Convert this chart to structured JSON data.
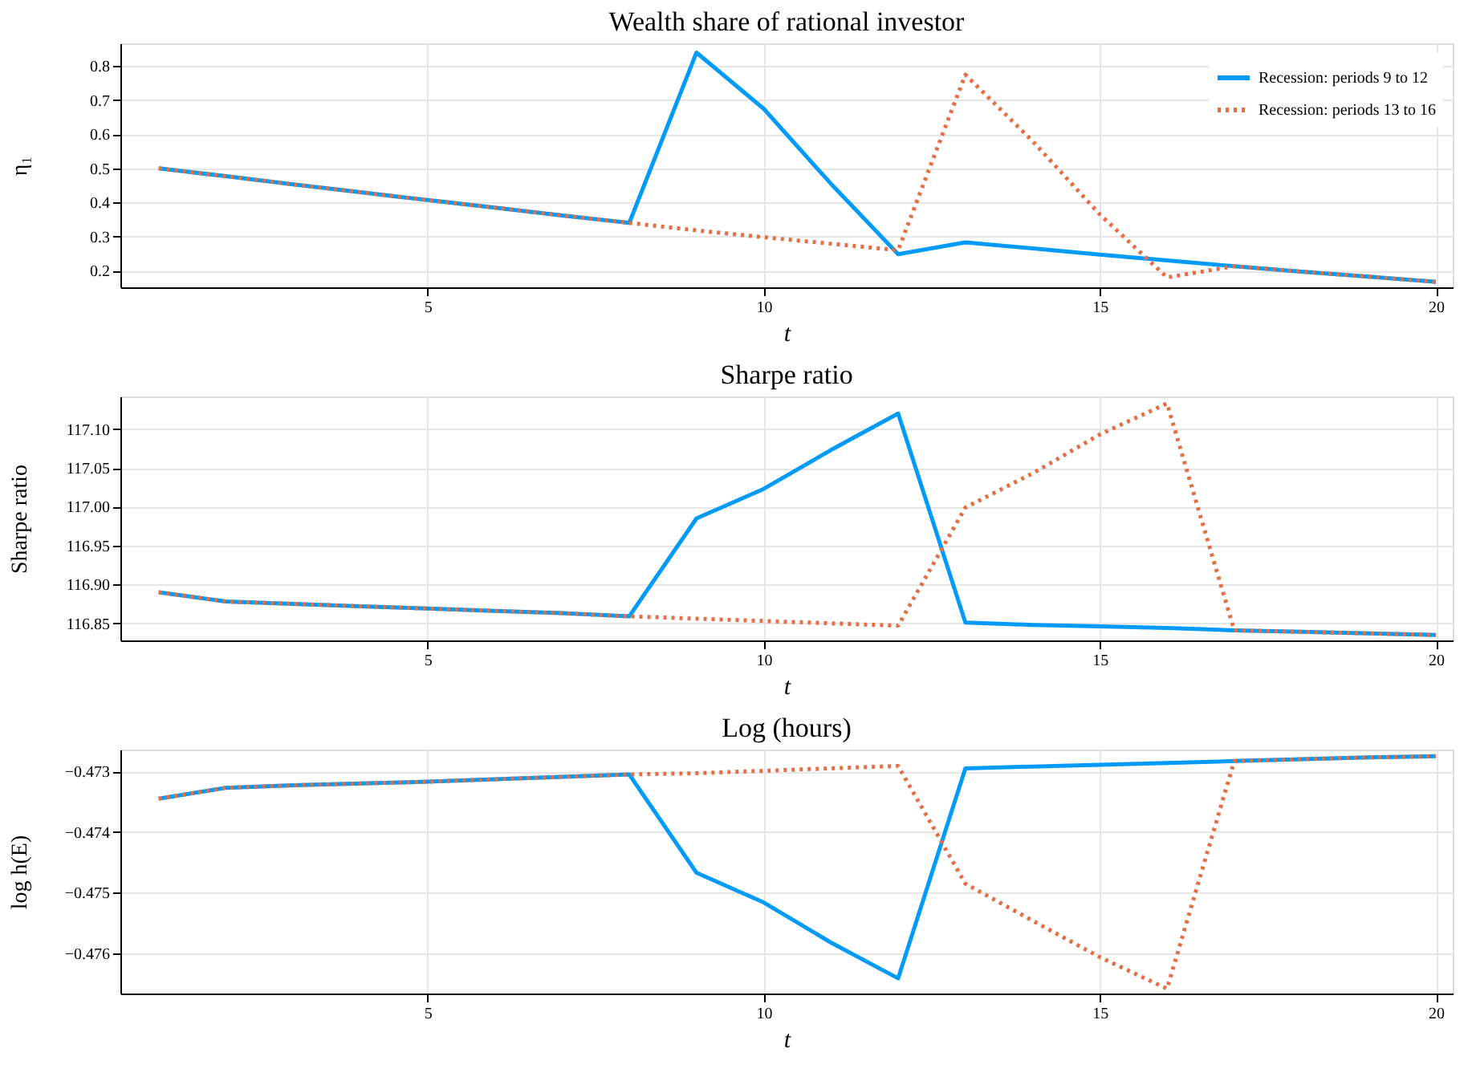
{
  "chart_data": [
    {
      "type": "line",
      "title": "Wealth share of rational investor",
      "xlabel": "t",
      "ylabel": "η₁",
      "x": [
        1,
        2,
        3,
        4,
        5,
        6,
        7,
        8,
        9,
        10,
        11,
        12,
        13,
        14,
        15,
        16,
        17,
        18,
        19,
        20
      ],
      "series": [
        {
          "name": "Recession: periods 9 to 12",
          "color": "#009af9",
          "line_style": "solid",
          "values": [
            0.5,
            0.477,
            0.453,
            0.43,
            0.407,
            0.385,
            0.362,
            0.34,
            0.84,
            0.675,
            0.455,
            0.248,
            0.283,
            0.265,
            0.247,
            0.23,
            0.213,
            0.197,
            0.182,
            0.167
          ]
        },
        {
          "name": "Recession: periods 13 to 16",
          "color": "#e26f46",
          "line_style": "dotted",
          "values": [
            0.5,
            0.477,
            0.453,
            0.43,
            0.407,
            0.385,
            0.362,
            0.34,
            0.318,
            0.298,
            0.279,
            0.26,
            0.775,
            0.58,
            0.365,
            0.18,
            0.213,
            0.197,
            0.182,
            0.167
          ]
        }
      ],
      "xlim": [
        0.43,
        20.25
      ],
      "ylim": [
        0.151,
        0.867
      ],
      "xticks": [
        5,
        10,
        15,
        20
      ],
      "yticks": [
        0.2,
        0.3,
        0.4,
        0.5,
        0.6,
        0.7,
        0.8
      ],
      "grid": true,
      "legend": "top right"
    },
    {
      "type": "line",
      "title": "Sharpe ratio",
      "xlabel": "t",
      "ylabel": "Sharpe ratio",
      "x": [
        1,
        2,
        3,
        4,
        5,
        6,
        7,
        8,
        9,
        10,
        11,
        12,
        13,
        14,
        15,
        16,
        17,
        18,
        19,
        20
      ],
      "series": [
        {
          "color": "#009af9",
          "line_style": "solid",
          "values": [
            116.89,
            116.878,
            116.875,
            116.872,
            116.869,
            116.866,
            116.863,
            116.859,
            116.985,
            117.023,
            117.073,
            117.12,
            116.851,
            116.848,
            116.846,
            116.844,
            116.841,
            116.839,
            116.837,
            116.835
          ]
        },
        {
          "color": "#e26f46",
          "line_style": "dotted",
          "values": [
            116.89,
            116.878,
            116.875,
            116.872,
            116.869,
            116.866,
            116.863,
            116.859,
            116.856,
            116.853,
            116.85,
            116.847,
            116.999,
            117.043,
            117.093,
            117.133,
            116.841,
            116.839,
            116.837,
            116.835
          ]
        }
      ],
      "xlim": [
        0.43,
        20.25
      ],
      "ylim": [
        116.828,
        117.142
      ],
      "xticks": [
        5,
        10,
        15,
        20
      ],
      "yticks": [
        {
          "value": 116.85,
          "label": "116.85"
        },
        {
          "value": 116.9,
          "label": "116.90"
        },
        {
          "value": 116.95,
          "label": "116.95"
        },
        {
          "value": 117.0,
          "label": "117.00"
        },
        {
          "value": 117.05,
          "label": "117.05"
        },
        {
          "value": 117.1,
          "label": "117.10"
        }
      ],
      "grid": true
    },
    {
      "type": "line",
      "title": "Log (hours)",
      "xlabel": "t",
      "ylabel": "log h(E)",
      "x": [
        1,
        2,
        3,
        4,
        5,
        6,
        7,
        8,
        9,
        10,
        11,
        12,
        13,
        14,
        15,
        16,
        17,
        18,
        19,
        20
      ],
      "series": [
        {
          "color": "#009af9",
          "line_style": "solid",
          "values": [
            -0.47345,
            -0.47327,
            -0.47323,
            -0.4732,
            -0.47317,
            -0.47313,
            -0.47309,
            -0.47305,
            -0.47467,
            -0.47516,
            -0.47582,
            -0.47641,
            -0.47295,
            -0.47292,
            -0.47289,
            -0.47286,
            -0.47283,
            -0.4728,
            -0.47277,
            -0.47275
          ]
        },
        {
          "color": "#e26f46",
          "line_style": "dotted",
          "values": [
            -0.47345,
            -0.47327,
            -0.47323,
            -0.4732,
            -0.47317,
            -0.47313,
            -0.47309,
            -0.47305,
            -0.47303,
            -0.47299,
            -0.47295,
            -0.47291,
            -0.47485,
            -0.47546,
            -0.47606,
            -0.47658,
            -0.47283,
            -0.4728,
            -0.47277,
            -0.47275
          ]
        }
      ],
      "xlim": [
        0.43,
        20.25
      ],
      "ylim": [
        -0.47666,
        -0.47264
      ],
      "xticks": [
        5,
        10,
        15,
        20
      ],
      "yticks": [
        {
          "value": -0.476,
          "label": "−0.476"
        },
        {
          "value": -0.475,
          "label": "−0.475"
        },
        {
          "value": -0.474,
          "label": "−0.474"
        },
        {
          "value": -0.473,
          "label": "−0.473"
        }
      ],
      "grid": true
    }
  ]
}
